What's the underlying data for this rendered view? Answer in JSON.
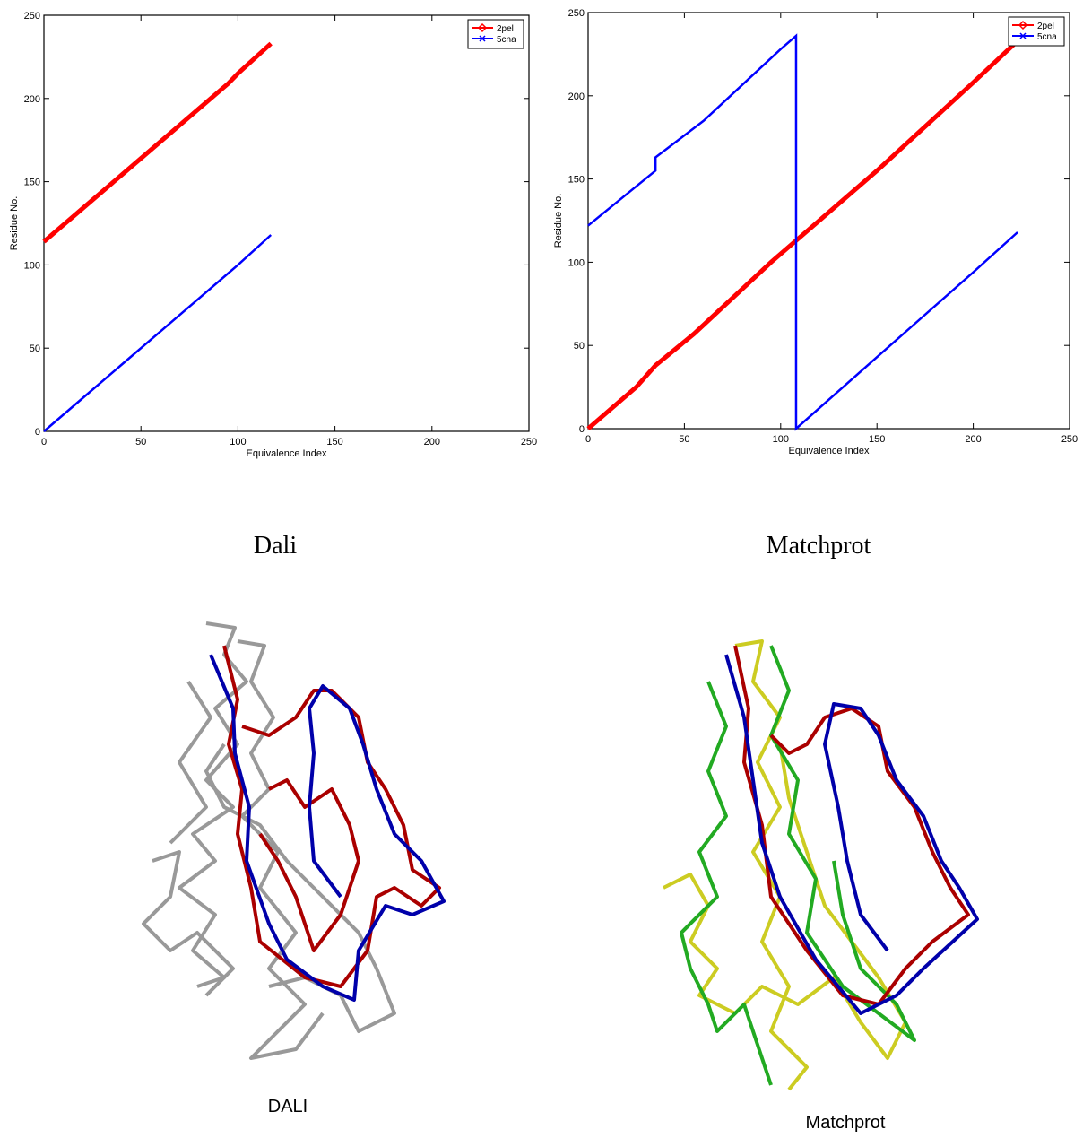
{
  "chart_data": [
    {
      "type": "line",
      "xlabel": "Equivalence Index",
      "ylabel": "Residue No.",
      "xlim": [
        0,
        250
      ],
      "ylim": [
        0,
        250
      ],
      "xticks": [
        0,
        50,
        100,
        150,
        200,
        250
      ],
      "yticks": [
        0,
        50,
        100,
        150,
        200,
        250
      ],
      "legend": "upper right",
      "series": [
        {
          "name": "2pel",
          "color": "#ff0000",
          "marker": "diamond",
          "x": [
            0,
            20,
            40,
            60,
            80,
            95,
            100,
            117
          ],
          "values": [
            114,
            134,
            154,
            174,
            194,
            209,
            215,
            233
          ]
        },
        {
          "name": "5cna",
          "color": "#0000ff",
          "marker": "x",
          "x": [
            0,
            20,
            40,
            60,
            80,
            100,
            117
          ],
          "values": [
            0,
            20,
            40,
            60,
            80,
            100,
            118
          ]
        }
      ]
    },
    {
      "type": "line",
      "xlabel": "Equivalence Index",
      "ylabel": "Residue No.",
      "xlim": [
        0,
        250
      ],
      "ylim": [
        0,
        250
      ],
      "xticks": [
        0,
        50,
        100,
        150,
        200,
        250
      ],
      "yticks": [
        0,
        50,
        100,
        150,
        200,
        250
      ],
      "legend": "upper right",
      "series": [
        {
          "name": "2pel",
          "color": "#ff0000",
          "marker": "diamond",
          "x": [
            0,
            25,
            35,
            55,
            95,
            108,
            150,
            200,
            224
          ],
          "values": [
            0,
            25,
            38,
            57,
            100,
            113,
            155,
            208,
            234
          ]
        },
        {
          "name": "5cna",
          "color": "#0000ff",
          "marker": "x",
          "x": [
            0,
            35,
            35,
            60,
            100,
            108,
            108,
            150,
            200,
            223
          ],
          "values": [
            122,
            155,
            163,
            185,
            228,
            236,
            0,
            43,
            94,
            118
          ]
        }
      ]
    }
  ],
  "captions": [
    "Dali",
    "Matchprot"
  ],
  "structure_labels": [
    "DALI",
    "Matchprot"
  ]
}
